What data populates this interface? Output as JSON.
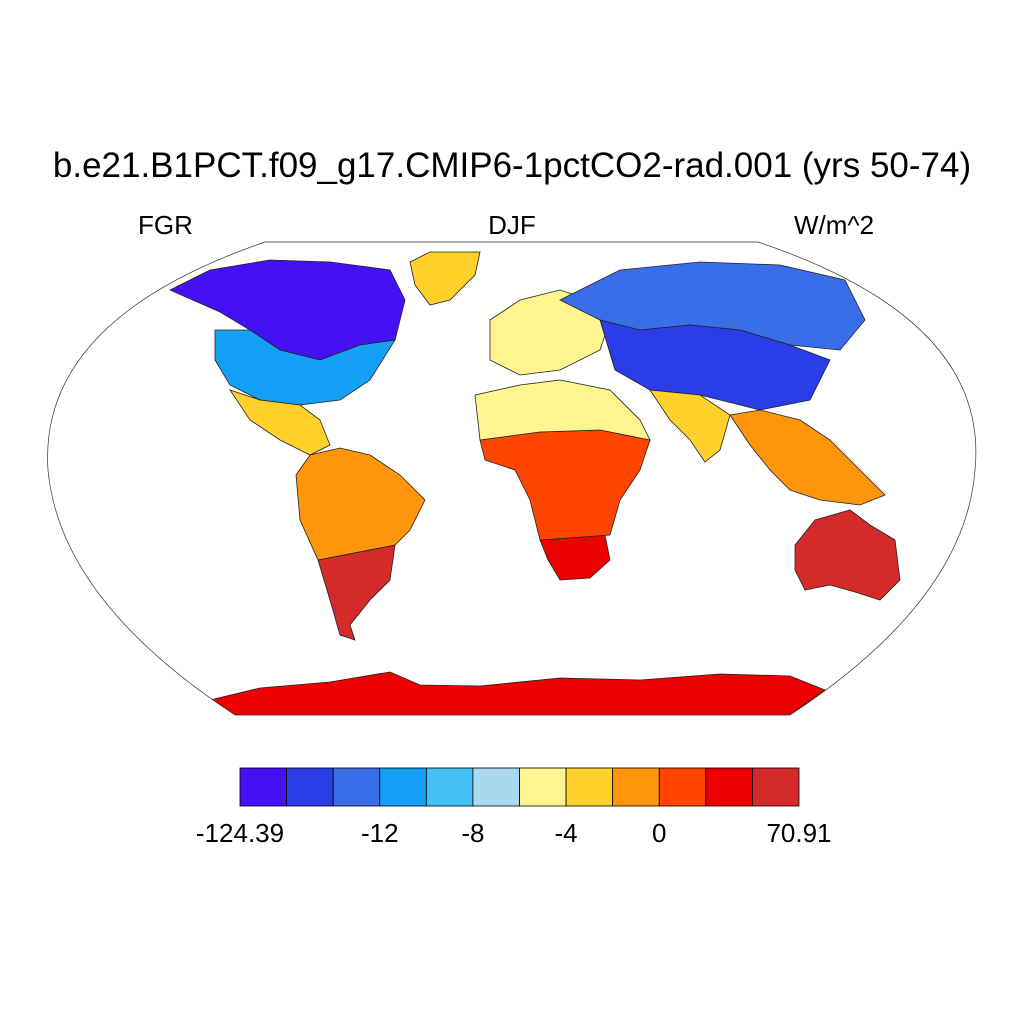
{
  "title": "b.e21.B1PCT.f09_g17.CMIP6-1pctCO2-rad.001 (yrs 50-74)",
  "left_label": "FGR",
  "center_label": "DJF",
  "right_label": "W/m^2",
  "chart_data": {
    "type": "heatmap",
    "projection": "robinson",
    "variable": "FGR",
    "season": "DJF",
    "units": "W/m^2",
    "colorbar": {
      "colors": [
        "#4510f4",
        "#2a3de8",
        "#3a6ee8",
        "#15a0f8",
        "#45c0f5",
        "#a9d9ef",
        "#fff58e",
        "#ffd12a",
        "#ff950a",
        "#ff4500",
        "#ec0000",
        "#d42a2a"
      ],
      "tick_labels": [
        "-124.39",
        "-12",
        "-8",
        "-4",
        "0",
        "70.91"
      ],
      "tick_boundaries": [
        0,
        3,
        5,
        7,
        9,
        12
      ]
    },
    "regions": [
      {
        "name": "Antarctica",
        "level": 11
      },
      {
        "name": "Australia",
        "level": 12
      },
      {
        "name": "South America south",
        "level": 12
      },
      {
        "name": "South America north",
        "level": 9
      },
      {
        "name": "Southern Africa",
        "level": 11
      },
      {
        "name": "Central Africa",
        "level": 10
      },
      {
        "name": "Sahara",
        "level": 7
      },
      {
        "name": "Europe",
        "level": 7
      },
      {
        "name": "Greenland",
        "level": 8
      },
      {
        "name": "Canada",
        "level": 1
      },
      {
        "name": "United States",
        "level": 4
      },
      {
        "name": "Mexico",
        "level": 8
      },
      {
        "name": "Siberia",
        "level": 3
      },
      {
        "name": "Central Asia",
        "level": 2
      },
      {
        "name": "India",
        "level": 8
      },
      {
        "name": "Southeast Asia",
        "level": 9
      }
    ]
  }
}
